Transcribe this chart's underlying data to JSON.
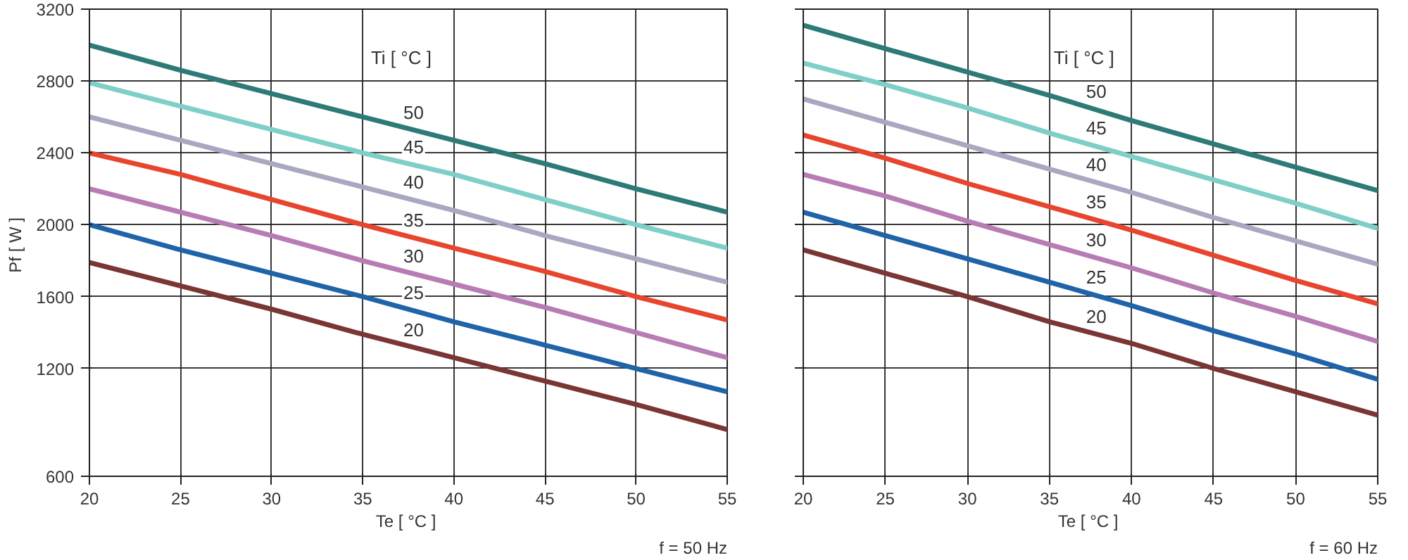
{
  "chart_data": [
    {
      "type": "line",
      "xlabel": "Te  [ °C ]",
      "ylabel": "Pf  [ W ]",
      "legend_title": "Ti  [ °C ]",
      "annotations": [
        "f = 50 Hz"
      ],
      "x": [
        20,
        25,
        30,
        35,
        40,
        45,
        50,
        55
      ],
      "xlim": [
        20,
        55
      ],
      "xticks": [
        20,
        25,
        30,
        35,
        40,
        45,
        50,
        55
      ],
      "ylim": [
        600,
        3200
      ],
      "yticks": [
        600,
        1200,
        1600,
        2000,
        2400,
        2800,
        3200
      ],
      "grid": true,
      "series": [
        {
          "name": "50",
          "color": "#2e7a76",
          "values": [
            3000,
            2860,
            2730,
            2600,
            2470,
            2340,
            2200,
            2070
          ]
        },
        {
          "name": "45",
          "color": "#7ecfc8",
          "values": [
            2790,
            2660,
            2530,
            2400,
            2280,
            2140,
            2000,
            1870
          ]
        },
        {
          "name": "40",
          "color": "#a8a8c0",
          "values": [
            2600,
            2470,
            2340,
            2210,
            2080,
            1940,
            1810,
            1680
          ]
        },
        {
          "name": "35",
          "color": "#e8452f",
          "values": [
            2400,
            2280,
            2140,
            2000,
            1870,
            1740,
            1600,
            1470
          ]
        },
        {
          "name": "30",
          "color": "#b77cb4",
          "values": [
            2200,
            2070,
            1940,
            1800,
            1670,
            1540,
            1400,
            1260
          ]
        },
        {
          "name": "25",
          "color": "#1f63a8",
          "values": [
            2000,
            1860,
            1730,
            1600,
            1460,
            1330,
            1200,
            1070
          ]
        },
        {
          "name": "20",
          "color": "#7a3535",
          "values": [
            1790,
            1660,
            1530,
            1390,
            1260,
            1130,
            1000,
            860
          ]
        }
      ]
    },
    {
      "type": "line",
      "xlabel": "Te  [ °C ]",
      "legend_title": "Ti  [ °C ]",
      "annotations": [
        "f = 60 Hz"
      ],
      "tick_labels": "x",
      "x": [
        20,
        25,
        30,
        35,
        40,
        45,
        50,
        55
      ],
      "xlim": [
        20,
        55
      ],
      "xticks": [
        20,
        25,
        30,
        35,
        40,
        45,
        50,
        55
      ],
      "ylim": [
        600,
        3200
      ],
      "yticks": [
        {
          "value": 600,
          "label": null
        },
        {
          "value": 1200,
          "label": null
        },
        {
          "value": 1600,
          "label": null
        },
        {
          "value": 2000,
          "label": null
        },
        {
          "value": 2400,
          "label": null
        },
        {
          "value": 2800,
          "label": null
        },
        {
          "value": 3200,
          "label": null
        }
      ],
      "grid": true,
      "series": [
        {
          "name": "50",
          "color": "#2e7a76",
          "values": [
            3110,
            2980,
            2850,
            2720,
            2580,
            2450,
            2320,
            2190
          ]
        },
        {
          "name": "45",
          "color": "#7ecfc8",
          "values": [
            2900,
            2780,
            2650,
            2510,
            2380,
            2250,
            2120,
            1980
          ]
        },
        {
          "name": "40",
          "color": "#a8a8c0",
          "values": [
            2700,
            2570,
            2440,
            2310,
            2180,
            2040,
            1910,
            1780
          ]
        },
        {
          "name": "35",
          "color": "#e8452f",
          "values": [
            2500,
            2370,
            2230,
            2100,
            1970,
            1830,
            1690,
            1560
          ]
        },
        {
          "name": "30",
          "color": "#b77cb4",
          "values": [
            2280,
            2160,
            2020,
            1890,
            1760,
            1620,
            1490,
            1350
          ]
        },
        {
          "name": "25",
          "color": "#1f63a8",
          "values": [
            2070,
            1940,
            1810,
            1680,
            1550,
            1410,
            1280,
            1140
          ]
        },
        {
          "name": "20",
          "color": "#7a3535",
          "values": [
            1860,
            1730,
            1600,
            1460,
            1340,
            1200,
            1070,
            940
          ]
        }
      ]
    }
  ]
}
